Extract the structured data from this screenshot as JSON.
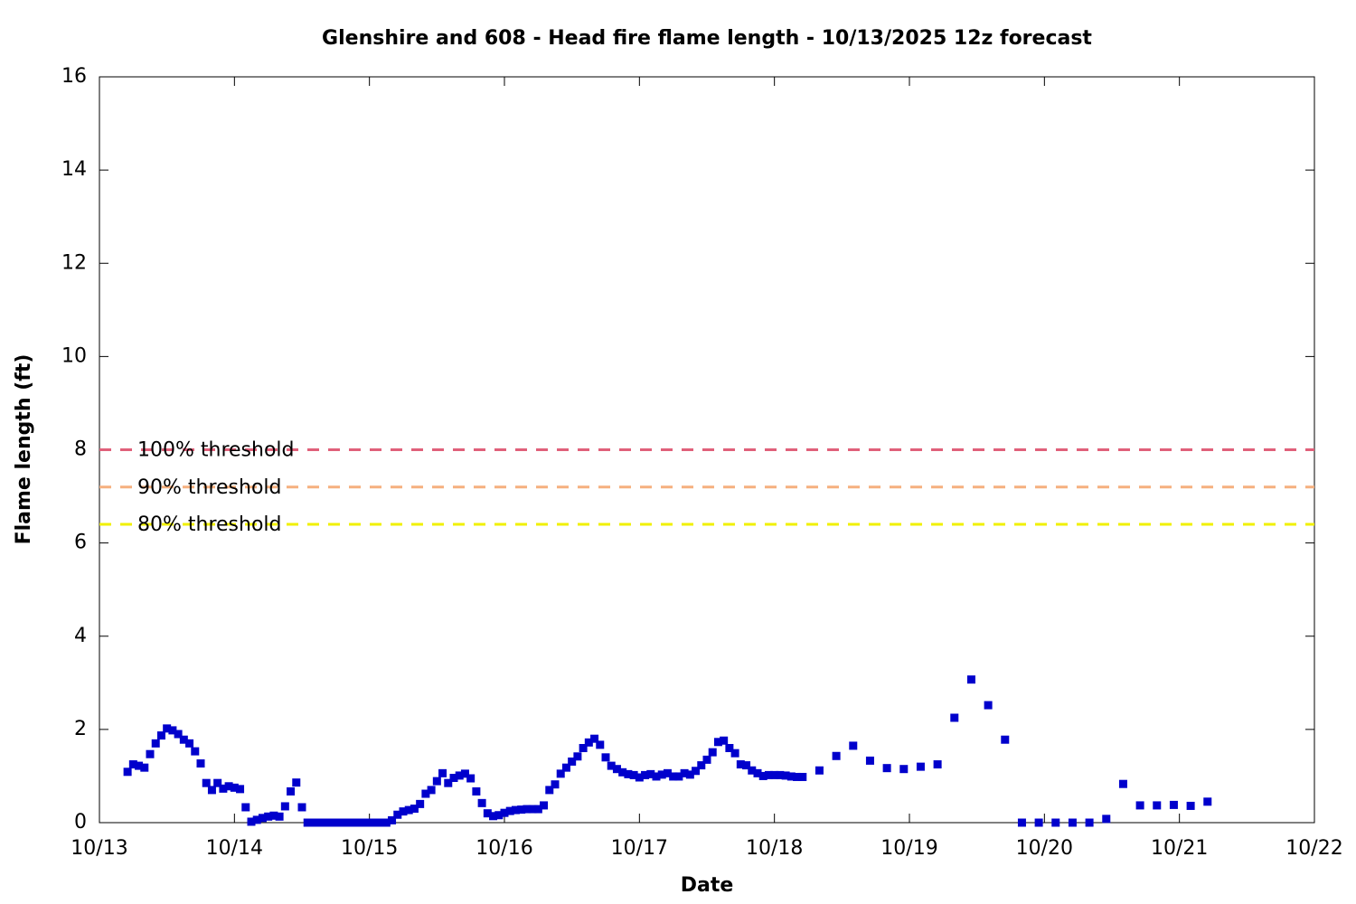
{
  "chart_data": {
    "type": "scatter",
    "title": "Glenshire and 608 - Head fire flame length - 10/13/2025 12z forecast",
    "xlabel": "Date",
    "ylabel": "Flame length (ft)",
    "xlim": [
      0,
      216
    ],
    "xticks": [
      {
        "value": 0,
        "label": "10/13"
      },
      {
        "value": 24,
        "label": "10/14"
      },
      {
        "value": 48,
        "label": "10/15"
      },
      {
        "value": 72,
        "label": "10/16"
      },
      {
        "value": 96,
        "label": "10/17"
      },
      {
        "value": 120,
        "label": "10/18"
      },
      {
        "value": 144,
        "label": "10/19"
      },
      {
        "value": 168,
        "label": "10/20"
      },
      {
        "value": 192,
        "label": "10/21"
      },
      {
        "value": 216,
        "label": "10/22"
      }
    ],
    "ylim": [
      0,
      16
    ],
    "yticks": [
      0,
      2,
      4,
      6,
      8,
      10,
      12,
      14,
      16
    ],
    "thresholds": [
      {
        "name": "100% threshold",
        "value": 8,
        "color": "#e0607a"
      },
      {
        "name": "90% threshold",
        "value": 7.2,
        "color": "#f5b07f"
      },
      {
        "name": "80% threshold",
        "value": 6.4,
        "color": "#f0f000"
      }
    ],
    "series": [
      {
        "color": "#0000cc",
        "x": [
          5,
          6,
          7,
          8,
          9,
          10,
          11,
          12,
          13,
          14,
          15,
          16,
          17,
          18,
          19,
          20,
          21,
          22,
          23,
          24,
          25,
          26,
          27,
          28,
          29,
          30,
          31,
          32,
          33,
          34,
          35,
          36,
          37,
          38,
          39,
          40,
          41,
          42,
          43,
          44,
          45,
          46,
          47,
          48,
          49,
          50,
          51,
          52,
          53,
          54,
          55,
          56,
          57,
          58,
          59,
          60,
          61,
          62,
          63,
          64,
          65,
          66,
          67,
          68,
          69,
          70,
          71,
          72,
          73,
          74,
          75,
          76,
          77,
          78,
          79,
          80,
          81,
          82,
          83,
          84,
          85,
          86,
          87,
          88,
          89,
          90,
          91,
          92,
          93,
          94,
          95,
          96,
          97,
          98,
          99,
          100,
          101,
          102,
          103,
          104,
          105,
          106,
          107,
          108,
          109,
          110,
          111,
          112,
          113,
          114,
          115,
          116,
          117,
          118,
          119,
          120,
          121,
          122,
          123,
          124,
          125,
          128,
          131,
          134,
          137,
          140,
          143,
          146,
          149,
          152,
          155,
          158,
          161,
          164,
          167,
          170,
          173,
          176,
          179,
          182,
          185,
          188,
          191,
          194,
          197
        ],
        "values": [
          1.09,
          1.25,
          1.22,
          1.18,
          1.47,
          1.7,
          1.87,
          2.02,
          1.98,
          1.9,
          1.78,
          1.7,
          1.53,
          1.27,
          0.85,
          0.7,
          0.85,
          0.73,
          0.78,
          0.75,
          0.72,
          0.33,
          0.02,
          0.06,
          0.1,
          0.13,
          0.15,
          0.13,
          0.35,
          0.67,
          0.86,
          0.33,
          0,
          0,
          0,
          0,
          0,
          0,
          0,
          0,
          0,
          0,
          0,
          0,
          0,
          0,
          0,
          0.05,
          0.17,
          0.24,
          0.27,
          0.3,
          0.4,
          0.62,
          0.7,
          0.89,
          1.06,
          0.85,
          0.96,
          1.01,
          1.05,
          0.95,
          0.67,
          0.42,
          0.2,
          0.14,
          0.16,
          0.21,
          0.25,
          0.27,
          0.28,
          0.29,
          0.29,
          0.29,
          0.37,
          0.7,
          0.82,
          1.05,
          1.18,
          1.31,
          1.42,
          1.6,
          1.72,
          1.8,
          1.67,
          1.4,
          1.22,
          1.15,
          1.08,
          1.04,
          1.02,
          0.97,
          1.02,
          1.04,
          0.99,
          1.03,
          1.06,
          0.99,
          0.99,
          1.06,
          1.03,
          1.11,
          1.23,
          1.35,
          1.51,
          1.73,
          1.76,
          1.6,
          1.49,
          1.25,
          1.23,
          1.12,
          1.06,
          1.0,
          1.02,
          1.02,
          1.02,
          1.01,
          0.99,
          0.98,
          0.98,
          1.12,
          1.43,
          1.65,
          1.33,
          1.17,
          1.15,
          1.2,
          1.25,
          2.25,
          3.07,
          2.52,
          1.78,
          0,
          0,
          0,
          0,
          0,
          0.08,
          0.83,
          0.37,
          0.37,
          0.38,
          0.36,
          0.45
        ]
      }
    ]
  }
}
